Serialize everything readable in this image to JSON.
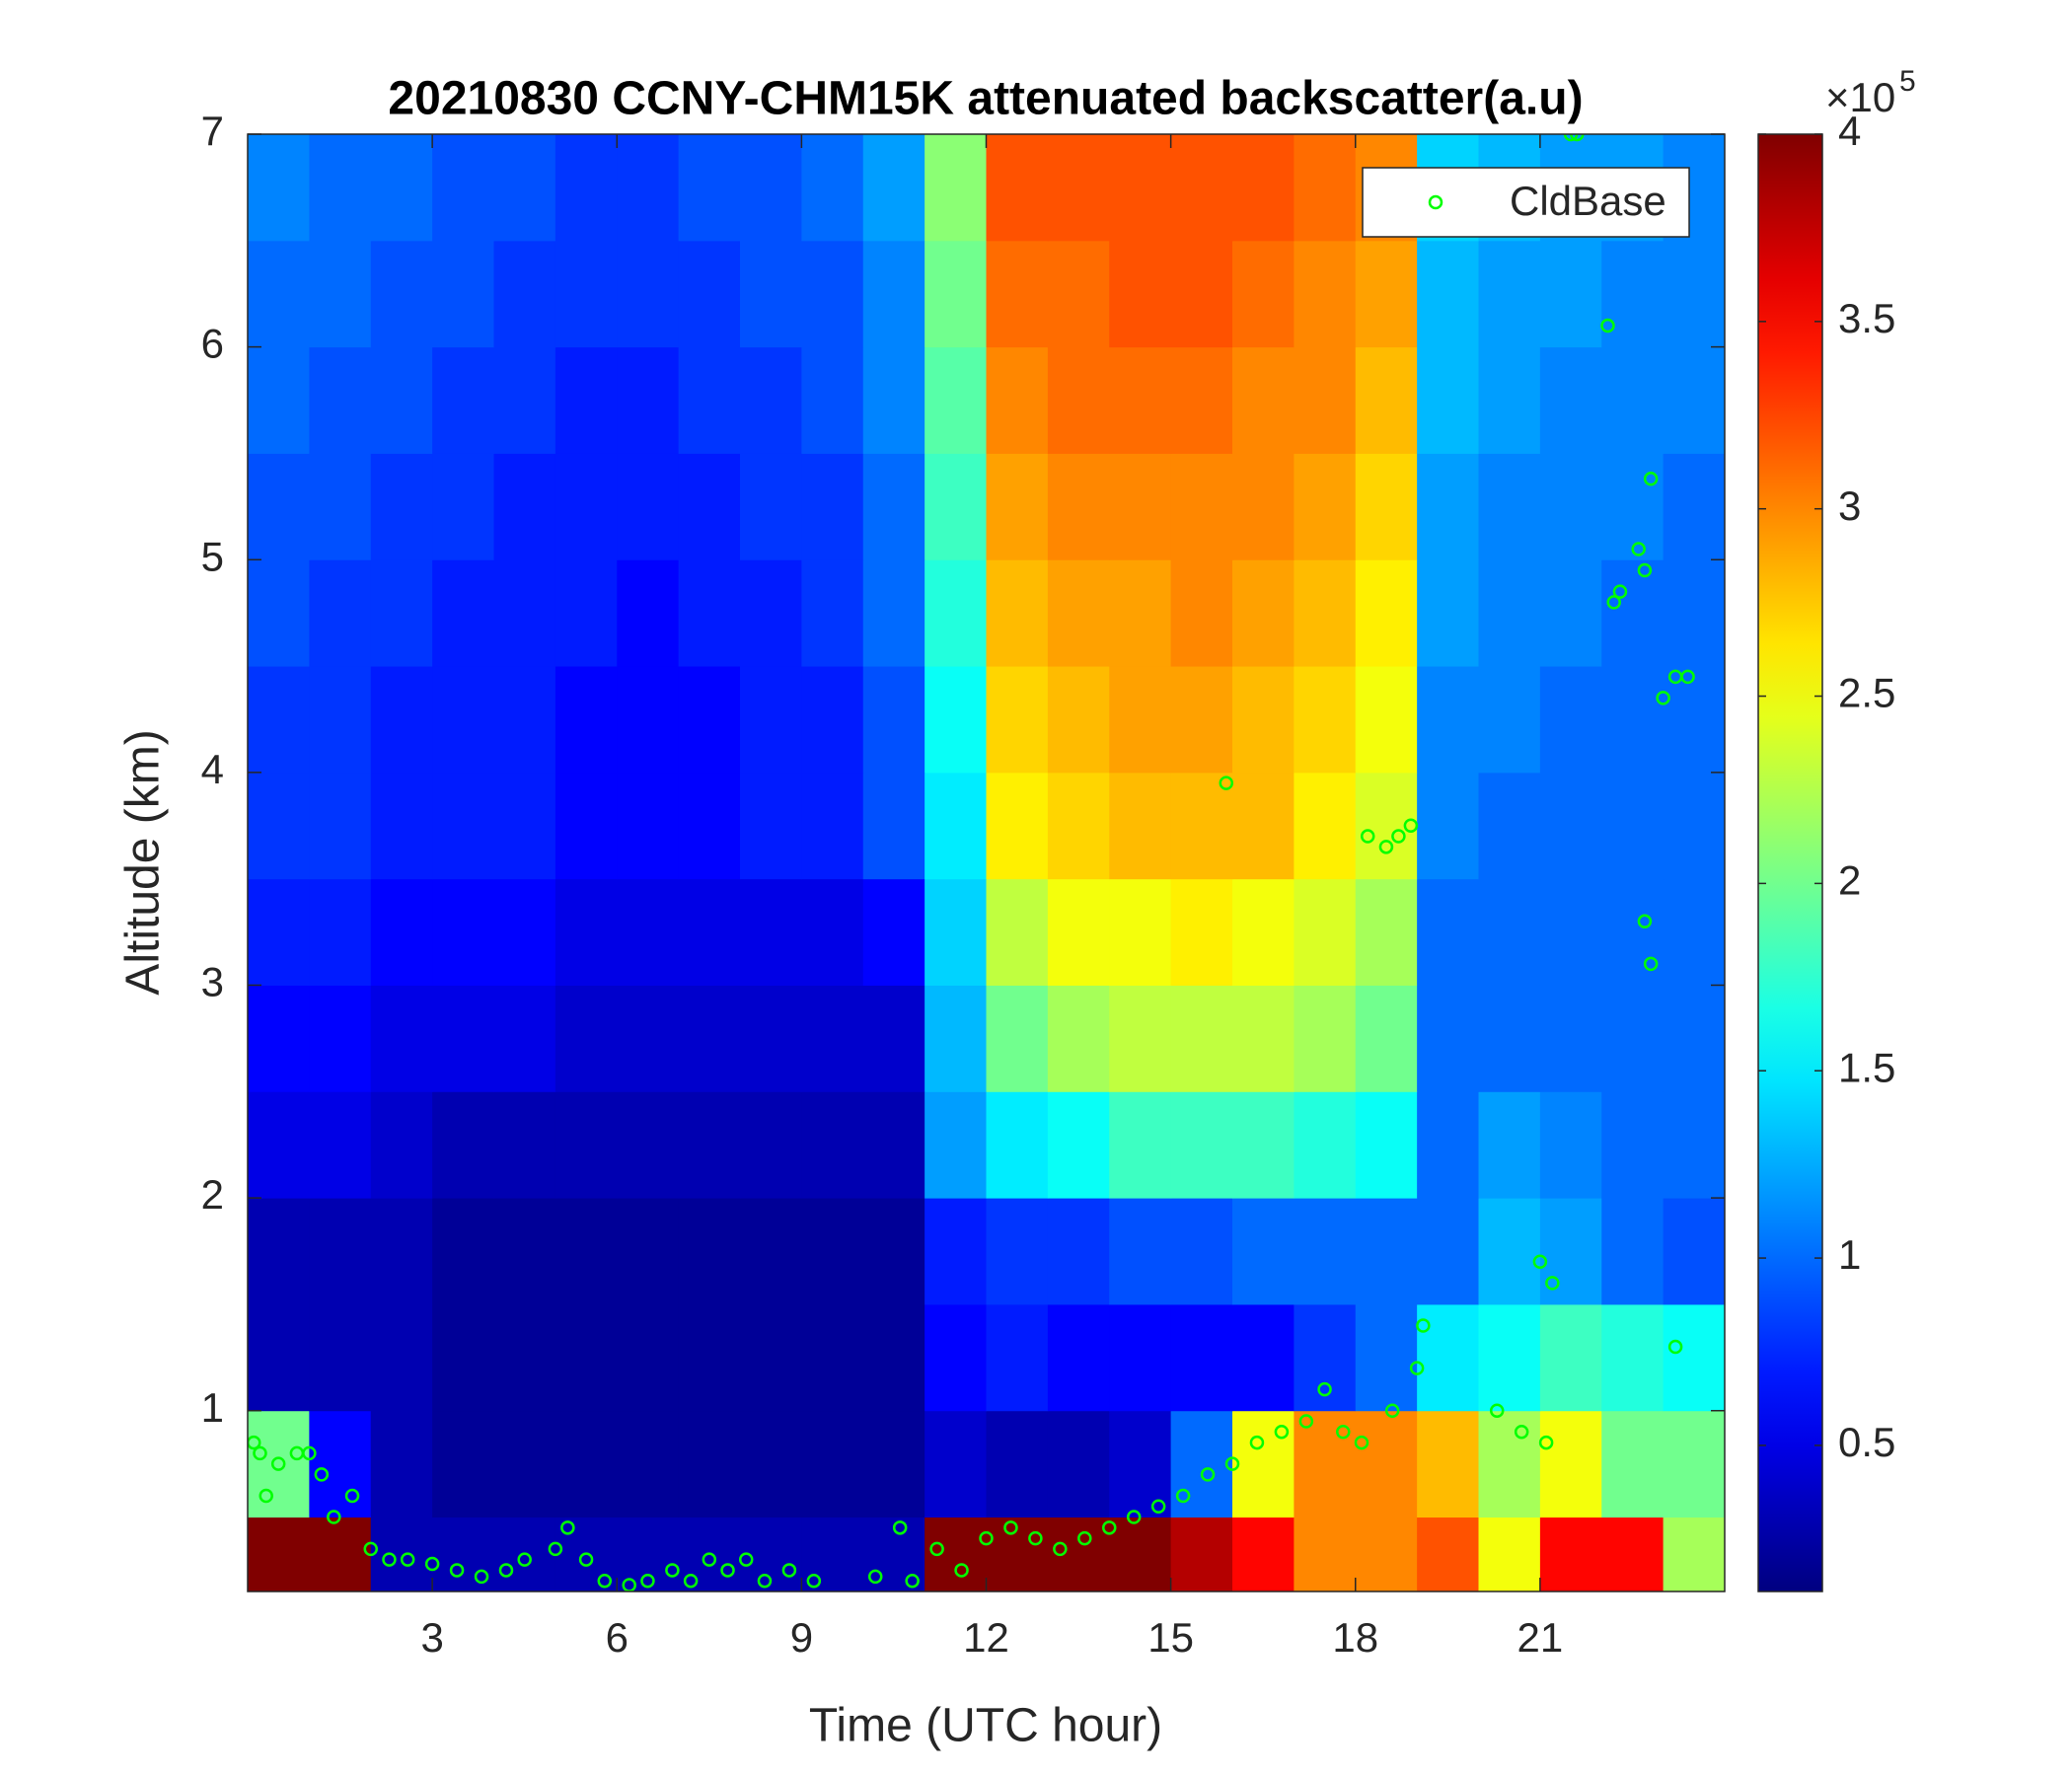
{
  "chart_data": {
    "type": "heatmap",
    "title": "20210830 CCNY-CHM15K attenuated backscatter(a.u)",
    "xlabel": "Time (UTC hour)",
    "ylabel": "Altitude (km)",
    "xlim": [
      0,
      24
    ],
    "ylim": [
      0.15,
      7
    ],
    "xticks": [
      3,
      6,
      9,
      12,
      15,
      18,
      21
    ],
    "yticks": [
      1,
      2,
      3,
      4,
      5,
      6,
      7
    ],
    "colormap": "jet",
    "clim": [
      0.11,
      4
    ],
    "cticks": [
      0.5,
      1,
      1.5,
      2,
      2.5,
      3,
      3.5,
      4
    ],
    "colorbar_multiplier": {
      "base": "×10",
      "exponent": "5"
    },
    "xbins": [
      0,
      1,
      2,
      3,
      4,
      5,
      6,
      7,
      8,
      9,
      10,
      11,
      12,
      13,
      14,
      15,
      16,
      17,
      18,
      19,
      20,
      21,
      22,
      23,
      24
    ],
    "ybins": [
      0.15,
      0.5,
      1,
      1.5,
      2,
      2.5,
      3,
      3.5,
      4,
      4.5,
      5,
      5.5,
      6,
      6.5,
      7
    ],
    "z": [
      [
        4,
        4,
        0.3,
        0.3,
        0.3,
        0.3,
        0.3,
        0.3,
        0.3,
        0.3,
        0.3,
        4,
        4,
        4,
        4,
        3.8,
        3.5,
        3,
        3,
        3.2,
        2.5,
        3.5,
        3.5,
        2.2
      ],
      [
        2,
        0.6,
        0.3,
        0.2,
        0.2,
        0.2,
        0.2,
        0.2,
        0.2,
        0.2,
        0.2,
        0.4,
        0.3,
        0.3,
        0.4,
        1,
        2.5,
        3,
        3,
        2.8,
        2.2,
        2.5,
        2,
        2
      ],
      [
        0.3,
        0.3,
        0.3,
        0.2,
        0.2,
        0.2,
        0.2,
        0.2,
        0.2,
        0.2,
        0.2,
        0.6,
        0.7,
        0.6,
        0.6,
        0.6,
        0.6,
        0.8,
        1,
        1.5,
        1.6,
        1.8,
        1.7,
        1.6
      ],
      [
        0.3,
        0.3,
        0.3,
        0.2,
        0.2,
        0.2,
        0.2,
        0.2,
        0.2,
        0.2,
        0.2,
        0.7,
        0.8,
        0.8,
        0.9,
        0.9,
        1,
        1,
        1,
        1,
        1.3,
        1.2,
        1,
        0.9
      ],
      [
        0.5,
        0.5,
        0.4,
        0.3,
        0.3,
        0.3,
        0.3,
        0.3,
        0.3,
        0.3,
        0.3,
        1.2,
        1.5,
        1.6,
        1.8,
        1.8,
        1.8,
        1.7,
        1.6,
        1,
        1.2,
        1.1,
        1,
        1
      ],
      [
        0.6,
        0.6,
        0.5,
        0.5,
        0.5,
        0.4,
        0.4,
        0.4,
        0.4,
        0.4,
        0.4,
        1.3,
        2,
        2.2,
        2.3,
        2.3,
        2.3,
        2.2,
        2,
        1,
        1,
        1,
        1,
        1
      ],
      [
        0.7,
        0.7,
        0.6,
        0.6,
        0.6,
        0.5,
        0.5,
        0.5,
        0.5,
        0.5,
        0.6,
        1.4,
        2.3,
        2.5,
        2.5,
        2.6,
        2.5,
        2.4,
        2.2,
        1,
        1,
        1,
        1,
        1
      ],
      [
        0.8,
        0.8,
        0.7,
        0.7,
        0.7,
        0.6,
        0.6,
        0.6,
        0.7,
        0.7,
        0.9,
        1.5,
        2.6,
        2.7,
        2.8,
        2.8,
        2.8,
        2.6,
        2.4,
        1.1,
        1,
        1,
        1,
        1
      ],
      [
        0.8,
        0.8,
        0.7,
        0.7,
        0.7,
        0.6,
        0.6,
        0.6,
        0.7,
        0.7,
        0.9,
        1.6,
        2.7,
        2.8,
        2.9,
        2.9,
        2.8,
        2.7,
        2.5,
        1.1,
        1.1,
        1,
        1,
        1
      ],
      [
        0.9,
        0.8,
        0.8,
        0.7,
        0.7,
        0.7,
        0.6,
        0.7,
        0.7,
        0.8,
        1,
        1.7,
        2.8,
        2.9,
        2.9,
        3,
        2.9,
        2.8,
        2.6,
        1.2,
        1.1,
        1.1,
        1,
        1
      ],
      [
        0.9,
        0.9,
        0.8,
        0.8,
        0.7,
        0.7,
        0.7,
        0.7,
        0.8,
        0.8,
        1,
        1.8,
        2.9,
        3,
        3,
        3,
        3,
        2.9,
        2.7,
        1.2,
        1.1,
        1.1,
        1.1,
        1
      ],
      [
        1,
        0.9,
        0.9,
        0.8,
        0.8,
        0.7,
        0.7,
        0.8,
        0.8,
        0.9,
        1.1,
        1.9,
        3,
        3.1,
        3.1,
        3.1,
        3,
        3,
        2.8,
        1.3,
        1.2,
        1.1,
        1.1,
        1.1
      ],
      [
        1,
        1,
        0.9,
        0.9,
        0.8,
        0.8,
        0.8,
        0.8,
        0.9,
        0.9,
        1.1,
        2,
        3.1,
        3.1,
        3.2,
        3.2,
        3.1,
        3,
        2.9,
        1.3,
        1.2,
        1.2,
        1.1,
        1.1
      ],
      [
        1.1,
        1,
        1,
        0.9,
        0.9,
        0.8,
        0.8,
        0.9,
        0.9,
        1,
        1.2,
        2.1,
        3.2,
        3.2,
        3.2,
        3.2,
        3.2,
        3.1,
        3,
        1.4,
        1.3,
        1.2,
        1.2,
        1.1
      ]
    ],
    "series": [
      {
        "name": "CldBase",
        "color": "#00ff00",
        "marker": "circle",
        "x": [
          0.1,
          0.2,
          0.3,
          0.5,
          0.8,
          1,
          1.2,
          1.4,
          1.7,
          2,
          2.3,
          2.6,
          3,
          3.4,
          3.8,
          4.2,
          4.5,
          5,
          5.2,
          5.5,
          5.8,
          6.2,
          6.5,
          6.9,
          7.2,
          7.5,
          7.8,
          8.1,
          8.4,
          8.8,
          9.2,
          10.2,
          10.6,
          10.8,
          11.2,
          11.6,
          12,
          12.4,
          12.8,
          13.2,
          13.6,
          14,
          14.4,
          14.8,
          15.2,
          15.6,
          16,
          16.4,
          16.8,
          17.2,
          17.5,
          17.8,
          18.1,
          18.2,
          18.5,
          18.7,
          18.9,
          18.6,
          19,
          19.1,
          15.9,
          20.3,
          20.7,
          21,
          21.1,
          21.2,
          21.5,
          21.6,
          22.1,
          22.2,
          22.3,
          22.6,
          22.7,
          22.8,
          22.7,
          22.8,
          23,
          23.2,
          23.4,
          23.2
        ],
        "y": [
          0.85,
          0.8,
          0.6,
          0.75,
          0.8,
          0.8,
          0.7,
          0.5,
          0.6,
          0.35,
          0.3,
          0.3,
          0.28,
          0.25,
          0.22,
          0.25,
          0.3,
          0.35,
          0.45,
          0.3,
          0.2,
          0.18,
          0.2,
          0.25,
          0.2,
          0.3,
          0.25,
          0.3,
          0.2,
          0.25,
          0.2,
          0.22,
          0.45,
          0.2,
          0.35,
          0.25,
          0.4,
          0.45,
          0.4,
          0.35,
          0.4,
          0.45,
          0.5,
          0.55,
          0.6,
          0.7,
          0.75,
          0.85,
          0.9,
          0.95,
          1.1,
          0.9,
          0.85,
          3.7,
          3.65,
          3.7,
          3.75,
          1,
          1.2,
          1.4,
          3.95,
          1,
          0.9,
          1.7,
          0.85,
          1.6,
          7,
          7,
          6.1,
          4.8,
          4.85,
          5.05,
          4.95,
          5.38,
          3.3,
          3.1,
          4.35,
          4.45,
          4.45,
          1.3
        ]
      }
    ],
    "legend": "upper right"
  }
}
